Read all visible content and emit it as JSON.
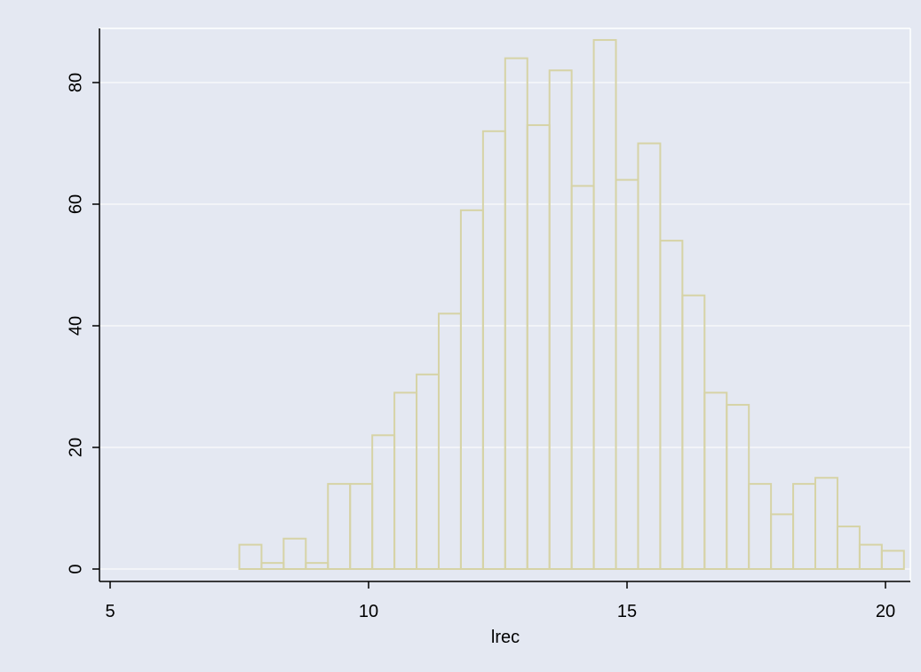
{
  "chart_data": {
    "type": "bar",
    "subtype": "histogram",
    "title": "",
    "xlabel": "lrec",
    "ylabel": "",
    "xlim": [
      5,
      20.5
    ],
    "ylim": [
      0,
      89.5
    ],
    "x_ticks": [
      5,
      10,
      15,
      20
    ],
    "y_ticks": [
      0,
      20,
      40,
      60,
      80
    ],
    "grid": true,
    "legend": "none",
    "bin_width": 0.42857,
    "bins": [
      {
        "start": 7.5,
        "count": 4
      },
      {
        "start": 7.9286,
        "count": 1
      },
      {
        "start": 8.3571,
        "count": 5
      },
      {
        "start": 8.7857,
        "count": 1
      },
      {
        "start": 9.2143,
        "count": 14
      },
      {
        "start": 9.6429,
        "count": 14
      },
      {
        "start": 10.0714,
        "count": 22
      },
      {
        "start": 10.5,
        "count": 29
      },
      {
        "start": 10.9286,
        "count": 32
      },
      {
        "start": 11.3571,
        "count": 42
      },
      {
        "start": 11.7857,
        "count": 59
      },
      {
        "start": 12.2143,
        "count": 72
      },
      {
        "start": 12.6429,
        "count": 84
      },
      {
        "start": 13.0714,
        "count": 73
      },
      {
        "start": 13.5,
        "count": 82
      },
      {
        "start": 13.9286,
        "count": 63
      },
      {
        "start": 14.3571,
        "count": 87
      },
      {
        "start": 14.7857,
        "count": 64
      },
      {
        "start": 15.2143,
        "count": 70
      },
      {
        "start": 15.6429,
        "count": 54
      },
      {
        "start": 16.0714,
        "count": 45
      },
      {
        "start": 16.5,
        "count": 29
      },
      {
        "start": 16.9286,
        "count": 27
      },
      {
        "start": 17.3571,
        "count": 14
      },
      {
        "start": 17.7857,
        "count": 9
      },
      {
        "start": 18.2143,
        "count": 14
      },
      {
        "start": 18.6429,
        "count": 15
      },
      {
        "start": 19.0714,
        "count": 7
      },
      {
        "start": 19.5,
        "count": 4
      },
      {
        "start": 19.9286,
        "count": 3
      }
    ]
  },
  "colors": {
    "background": "#e4e8f2",
    "grid": "#ffffff",
    "bar_outline": "#d6d3a6",
    "bar_fill": "none",
    "axis": "#000000"
  }
}
